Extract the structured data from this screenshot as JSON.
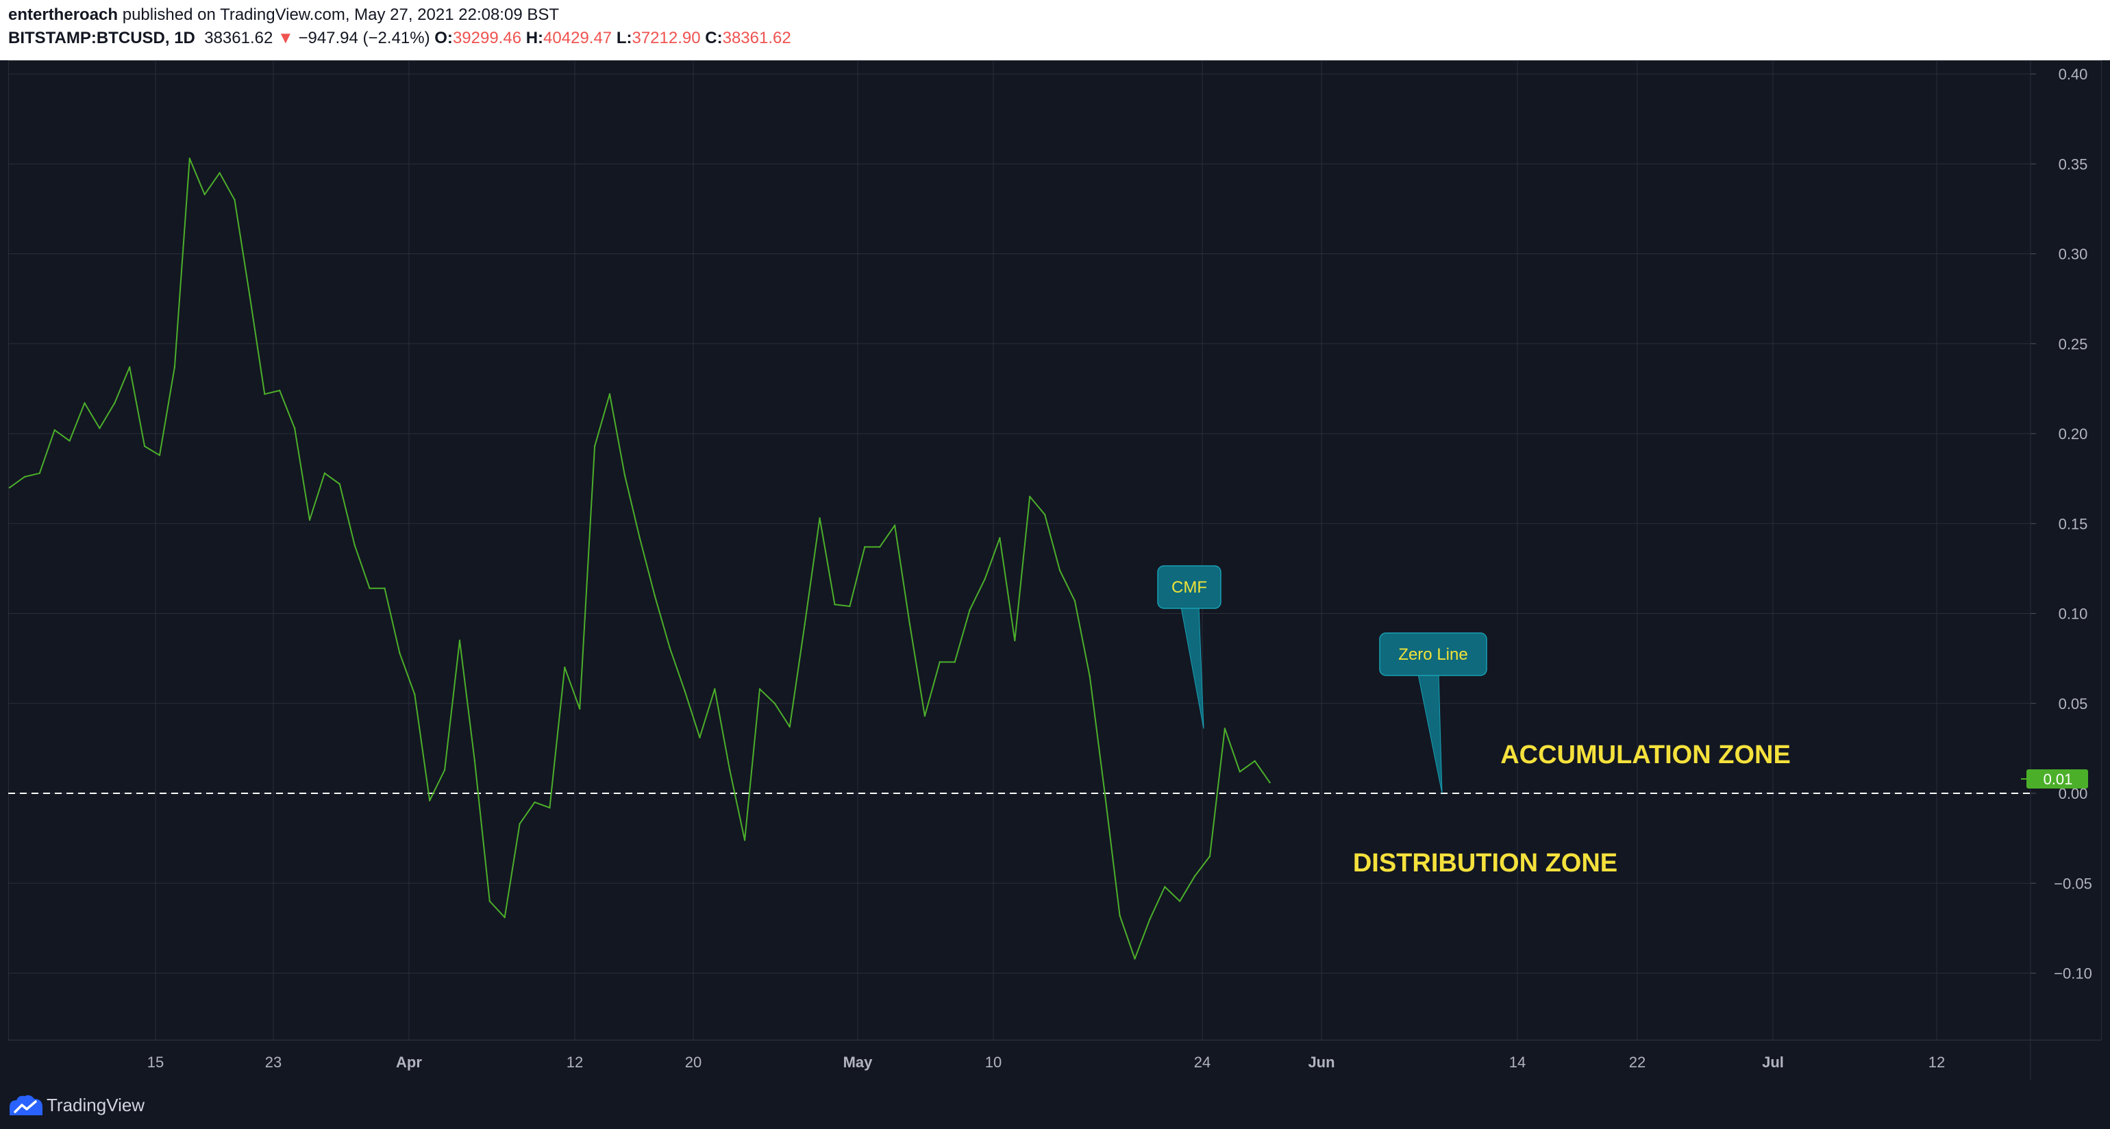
{
  "header": {
    "author": "entertheroach",
    "published_text": " published on TradingView.com, May 27, 2021 22:08:09 BST",
    "symbol": "BITSTAMP:BTCUSD, 1D",
    "last_price": "38361.62",
    "change_arrow": "▼",
    "change": "−947.94 (−2.41%)",
    "open_label": "O:",
    "open_value": "39299.46",
    "high_label": "H:",
    "high_value": "40429.47",
    "low_label": "L:",
    "low_value": "37212.90",
    "close_label": "C:",
    "close_value": "38361.62"
  },
  "colors": {
    "background": "#131722",
    "grid": "#2a2e39",
    "line": "#4caf2a",
    "zero_line": "#ffffff",
    "callout": "#0e6a7c",
    "callout_text": "#f0e33a",
    "zone_text": "#f5e13c",
    "price_badge": "#4caf2a",
    "axis_text": "#b2b5be"
  },
  "chart_data": {
    "type": "line",
    "series": [
      {
        "values": [
          0.17,
          0.176,
          0.178,
          0.202,
          0.196,
          0.217,
          0.203,
          0.217,
          0.237,
          0.193,
          0.188,
          0.237,
          0.353,
          0.333,
          0.345,
          0.33,
          0.277,
          0.222,
          0.224,
          0.203,
          0.152,
          0.178,
          0.172,
          0.138,
          0.114,
          0.114,
          0.078,
          0.055,
          -0.004,
          0.013,
          0.085,
          0.018,
          -0.06,
          -0.069,
          -0.017,
          -0.005,
          -0.008,
          0.07,
          0.047,
          0.193,
          0.222,
          0.177,
          0.142,
          0.11,
          0.081,
          0.057,
          0.031,
          0.058,
          0.013,
          -0.026,
          0.058,
          0.05,
          0.037,
          0.094,
          0.153,
          0.105,
          0.104,
          0.137,
          0.137,
          0.149,
          0.094,
          0.043,
          0.073,
          0.073,
          0.102,
          0.119,
          0.142,
          0.085,
          0.165,
          0.155,
          0.124,
          0.107,
          0.065,
          0.0,
          -0.068,
          -0.092,
          -0.07,
          -0.052,
          -0.06,
          -0.046,
          -0.035,
          0.036,
          0.012,
          0.018,
          0.006
        ]
      }
    ],
    "x_tick_labels": [
      "15",
      "23",
      "Apr",
      "12",
      "20",
      "May",
      "10",
      "24",
      "Jun",
      "14",
      "22",
      "Jul",
      "12"
    ],
    "bold_x_tick_labels": [
      "Apr",
      "May",
      "Jun",
      "Jul"
    ],
    "y_tick_labels": [
      "0.40",
      "0.35",
      "0.30",
      "0.25",
      "0.20",
      "0.15",
      "0.10",
      "0.05",
      "0.00",
      "−0.05",
      "−0.10"
    ],
    "ylim": [
      -0.135,
      0.405
    ],
    "reference_line": {
      "value": 0.0,
      "style": "dashed"
    },
    "last_value_label": "0.01",
    "annotations": {
      "cmf_label": "CMF",
      "zero_line_label": "Zero Line",
      "accumulation_label": "ACCUMULATION ZONE",
      "distribution_label": "DISTRIBUTION ZONE"
    },
    "grid": true
  },
  "footer": {
    "brand": "TradingView"
  }
}
